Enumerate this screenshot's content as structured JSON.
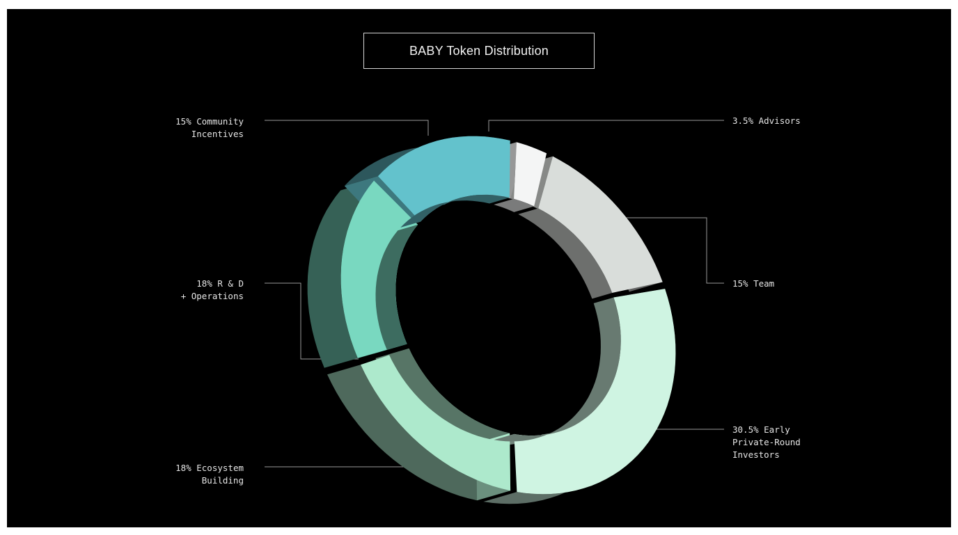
{
  "title": "BABY Token Distribution",
  "colors": {
    "background": "#000000",
    "leader_line": "#9a9a9a",
    "label_text": "#e6e6e6"
  },
  "chart_data": {
    "type": "pie",
    "variant": "3d-donut",
    "title": "BABY Token Distribution",
    "slices": [
      {
        "label": "15% Community\nIncentives",
        "name": "Community Incentives",
        "value": 15,
        "color": "#63c2cc"
      },
      {
        "label": "3.5% Advisors",
        "name": "Advisors",
        "value": 3.5,
        "color": "#f4f5f5"
      },
      {
        "label": "15% Team",
        "name": "Team",
        "value": 15,
        "color": "#d9ddda"
      },
      {
        "label": "30.5% Early\nPrivate-Round\nInvestors",
        "name": "Early Private-Round Investors",
        "value": 30.5,
        "color": "#cff4e2"
      },
      {
        "label": "18% Ecosystem\nBuilding",
        "name": "Ecosystem Building",
        "value": 18,
        "color": "#ade9cc"
      },
      {
        "label": "18% R & D\n+ Operations",
        "name": "R & D + Operations",
        "value": 18,
        "color": "#79d8c0"
      }
    ]
  }
}
